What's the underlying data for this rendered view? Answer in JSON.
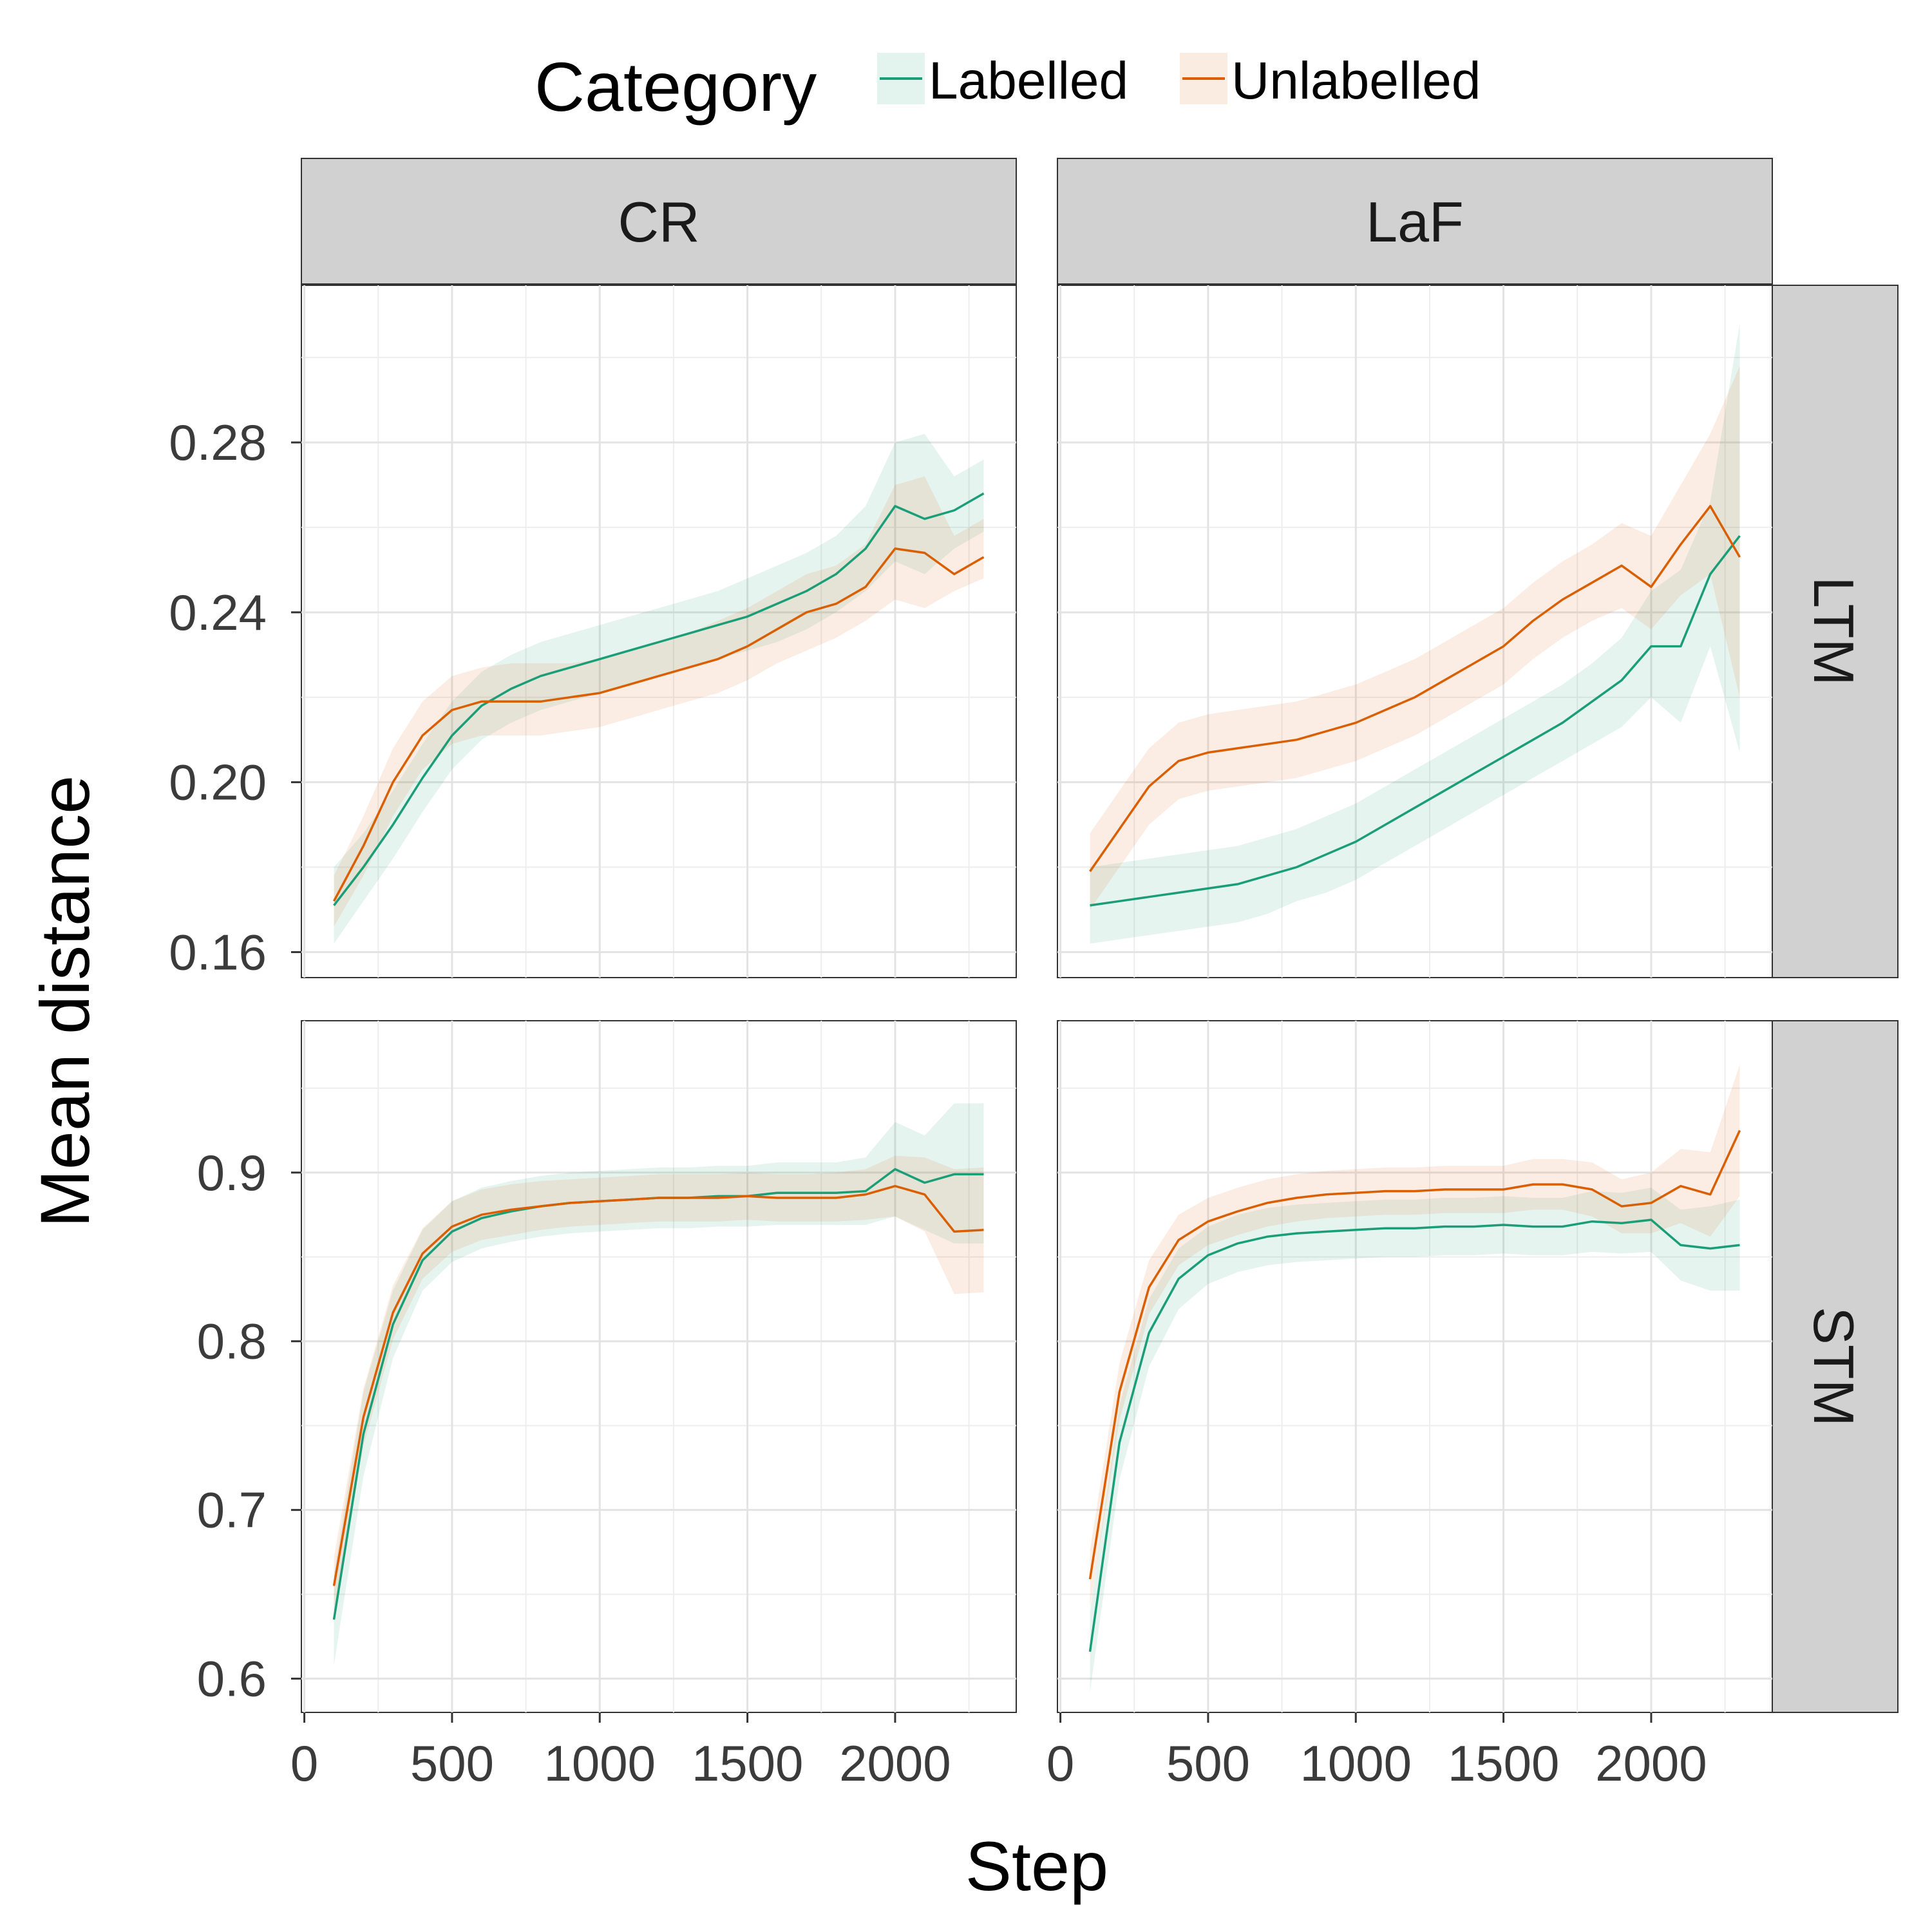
{
  "legend": {
    "title": "Category",
    "items": [
      {
        "label": "Labelled",
        "color": "#1b9e77"
      },
      {
        "label": "Unlabelled",
        "color": "#d95f02"
      }
    ]
  },
  "axes": {
    "xlabel": "Step",
    "ylabel": "Mean distance"
  },
  "chart_data": {
    "type": "line",
    "facets": {
      "columns": [
        "CR",
        "LaF"
      ],
      "rows": [
        "LTM",
        "STM"
      ]
    },
    "x": {
      "range": [
        -10,
        2410
      ],
      "ticks": [
        0,
        500,
        1000,
        1500,
        2000
      ],
      "tick_labels": [
        "0",
        "500",
        "1000",
        "1500",
        "2000"
      ]
    },
    "rows": {
      "LTM": {
        "ylim": [
          0.154,
          0.317
        ],
        "ticks": [
          0.16,
          0.2,
          0.24,
          0.28
        ],
        "tick_labels": [
          "0.16",
          "0.20",
          "0.24",
          "0.28"
        ]
      },
      "STM": {
        "ylim": [
          0.58,
          0.99
        ],
        "ticks": [
          0.6,
          0.7,
          0.8,
          0.9
        ],
        "tick_labels": [
          "0.6",
          "0.7",
          "0.8",
          "0.9"
        ]
      }
    },
    "steps": [
      100,
      200,
      300,
      400,
      500,
      600,
      700,
      800,
      900,
      1000,
      1100,
      1200,
      1300,
      1400,
      1500,
      1600,
      1700,
      1800,
      1900,
      2000,
      2100,
      2200,
      2300
    ],
    "panels": [
      {
        "col": "CR",
        "row": "LTM",
        "series": [
          {
            "name": "Labelled",
            "mean": [
              0.171,
              0.18,
              0.19,
              0.201,
              0.211,
              0.218,
              0.222,
              0.225,
              0.227,
              0.229,
              0.231,
              0.233,
              0.235,
              0.237,
              0.239,
              0.242,
              0.245,
              0.249,
              0.255,
              0.265,
              0.262,
              0.264,
              0.268
            ],
            "lower": [
              0.162,
              0.172,
              0.182,
              0.193,
              0.203,
              0.21,
              0.214,
              0.217,
              0.219,
              0.221,
              0.223,
              0.225,
              0.227,
              0.229,
              0.231,
              0.233,
              0.236,
              0.24,
              0.245,
              0.252,
              0.249,
              0.255,
              0.259
            ],
            "upper": [
              0.18,
              0.188,
              0.198,
              0.209,
              0.219,
              0.226,
              0.23,
              0.233,
              0.235,
              0.237,
              0.239,
              0.241,
              0.243,
              0.245,
              0.248,
              0.251,
              0.254,
              0.258,
              0.265,
              0.28,
              0.282,
              0.272,
              0.276
            ]
          },
          {
            "name": "Unlabelled",
            "mean": [
              0.172,
              0.185,
              0.2,
              0.211,
              0.217,
              0.219,
              0.219,
              0.219,
              0.22,
              0.221,
              0.223,
              0.225,
              0.227,
              0.229,
              0.232,
              0.236,
              0.24,
              0.242,
              0.246,
              0.255,
              0.254,
              0.249,
              0.253
            ],
            "lower": [
              0.166,
              0.178,
              0.192,
              0.203,
              0.209,
              0.211,
              0.211,
              0.211,
              0.212,
              0.213,
              0.215,
              0.217,
              0.219,
              0.221,
              0.224,
              0.228,
              0.231,
              0.234,
              0.238,
              0.243,
              0.241,
              0.245,
              0.248
            ],
            "upper": [
              0.178,
              0.192,
              0.208,
              0.219,
              0.225,
              0.227,
              0.228,
              0.228,
              0.228,
              0.229,
              0.231,
              0.233,
              0.235,
              0.238,
              0.241,
              0.245,
              0.249,
              0.251,
              0.256,
              0.27,
              0.272,
              0.258,
              0.262
            ]
          }
        ]
      },
      {
        "col": "LaF",
        "row": "LTM",
        "series": [
          {
            "name": "Labelled",
            "mean": [
              0.171,
              0.172,
              0.173,
              0.174,
              0.175,
              0.176,
              0.178,
              0.18,
              0.183,
              0.186,
              0.19,
              0.194,
              0.198,
              0.202,
              0.206,
              0.21,
              0.214,
              0.219,
              0.224,
              0.232,
              0.232,
              0.249,
              0.258
            ],
            "lower": [
              0.162,
              0.163,
              0.164,
              0.165,
              0.166,
              0.167,
              0.169,
              0.172,
              0.174,
              0.177,
              0.181,
              0.185,
              0.189,
              0.193,
              0.197,
              0.201,
              0.205,
              0.209,
              0.213,
              0.22,
              0.214,
              0.232,
              0.207
            ],
            "upper": [
              0.18,
              0.181,
              0.182,
              0.183,
              0.184,
              0.185,
              0.187,
              0.189,
              0.192,
              0.195,
              0.199,
              0.203,
              0.207,
              0.211,
              0.215,
              0.219,
              0.223,
              0.228,
              0.234,
              0.245,
              0.25,
              0.266,
              0.308
            ]
          },
          {
            "name": "Unlabelled",
            "mean": [
              0.179,
              0.189,
              0.199,
              0.205,
              0.207,
              0.208,
              0.209,
              0.21,
              0.212,
              0.214,
              0.217,
              0.22,
              0.224,
              0.228,
              0.232,
              0.238,
              0.243,
              0.247,
              0.251,
              0.246,
              0.256,
              0.265,
              0.253
            ],
            "lower": [
              0.17,
              0.18,
              0.19,
              0.196,
              0.198,
              0.199,
              0.2,
              0.201,
              0.203,
              0.205,
              0.208,
              0.211,
              0.215,
              0.219,
              0.223,
              0.229,
              0.234,
              0.238,
              0.241,
              0.236,
              0.244,
              0.249,
              0.22
            ],
            "upper": [
              0.188,
              0.198,
              0.208,
              0.214,
              0.216,
              0.217,
              0.218,
              0.219,
              0.221,
              0.223,
              0.226,
              0.229,
              0.233,
              0.237,
              0.241,
              0.247,
              0.252,
              0.256,
              0.261,
              0.258,
              0.27,
              0.282,
              0.298
            ]
          }
        ]
      },
      {
        "col": "CR",
        "row": "STM",
        "series": [
          {
            "name": "Labelled",
            "mean": [
              0.635,
              0.745,
              0.81,
              0.848,
              0.865,
              0.873,
              0.877,
              0.88,
              0.882,
              0.883,
              0.884,
              0.885,
              0.885,
              0.886,
              0.886,
              0.888,
              0.888,
              0.888,
              0.889,
              0.902,
              0.894,
              0.899,
              0.899
            ],
            "lower": [
              0.608,
              0.72,
              0.79,
              0.83,
              0.847,
              0.855,
              0.859,
              0.862,
              0.864,
              0.865,
              0.866,
              0.867,
              0.867,
              0.868,
              0.868,
              0.869,
              0.869,
              0.869,
              0.869,
              0.874,
              0.866,
              0.858,
              0.858
            ],
            "upper": [
              0.662,
              0.77,
              0.83,
              0.866,
              0.883,
              0.891,
              0.895,
              0.898,
              0.9,
              0.901,
              0.902,
              0.903,
              0.903,
              0.904,
              0.904,
              0.906,
              0.906,
              0.906,
              0.909,
              0.93,
              0.922,
              0.941,
              0.941
            ]
          },
          {
            "name": "Unlabelled",
            "mean": [
              0.655,
              0.755,
              0.817,
              0.852,
              0.868,
              0.875,
              0.878,
              0.88,
              0.882,
              0.883,
              0.884,
              0.885,
              0.885,
              0.885,
              0.886,
              0.885,
              0.885,
              0.885,
              0.887,
              0.892,
              0.887,
              0.865,
              0.866
            ],
            "lower": [
              0.638,
              0.738,
              0.801,
              0.837,
              0.853,
              0.86,
              0.863,
              0.866,
              0.868,
              0.869,
              0.87,
              0.871,
              0.871,
              0.871,
              0.872,
              0.871,
              0.871,
              0.871,
              0.872,
              0.874,
              0.865,
              0.828,
              0.829
            ],
            "upper": [
              0.672,
              0.772,
              0.833,
              0.867,
              0.883,
              0.89,
              0.893,
              0.895,
              0.896,
              0.897,
              0.898,
              0.899,
              0.899,
              0.899,
              0.9,
              0.899,
              0.899,
              0.9,
              0.902,
              0.91,
              0.909,
              0.902,
              0.903
            ]
          }
        ]
      },
      {
        "col": "LaF",
        "row": "STM",
        "series": [
          {
            "name": "Labelled",
            "mean": [
              0.616,
              0.74,
              0.805,
              0.837,
              0.851,
              0.858,
              0.862,
              0.864,
              0.865,
              0.866,
              0.867,
              0.867,
              0.868,
              0.868,
              0.869,
              0.868,
              0.868,
              0.871,
              0.87,
              0.872,
              0.857,
              0.855,
              0.857
            ],
            "lower": [
              0.592,
              0.718,
              0.785,
              0.819,
              0.834,
              0.841,
              0.845,
              0.847,
              0.848,
              0.849,
              0.85,
              0.85,
              0.851,
              0.851,
              0.852,
              0.851,
              0.851,
              0.853,
              0.852,
              0.853,
              0.836,
              0.83,
              0.83
            ],
            "upper": [
              0.64,
              0.762,
              0.825,
              0.855,
              0.868,
              0.875,
              0.879,
              0.881,
              0.882,
              0.883,
              0.884,
              0.884,
              0.885,
              0.885,
              0.886,
              0.885,
              0.885,
              0.889,
              0.888,
              0.891,
              0.878,
              0.88,
              0.884
            ]
          },
          {
            "name": "Unlabelled",
            "mean": [
              0.659,
              0.77,
              0.832,
              0.86,
              0.871,
              0.877,
              0.882,
              0.885,
              0.887,
              0.888,
              0.889,
              0.889,
              0.89,
              0.89,
              0.89,
              0.893,
              0.893,
              0.89,
              0.88,
              0.882,
              0.892,
              0.887,
              0.925
            ],
            "lower": [
              0.642,
              0.753,
              0.816,
              0.845,
              0.857,
              0.863,
              0.868,
              0.871,
              0.873,
              0.874,
              0.875,
              0.875,
              0.876,
              0.876,
              0.876,
              0.878,
              0.878,
              0.874,
              0.864,
              0.864,
              0.87,
              0.862,
              0.886
            ],
            "upper": [
              0.676,
              0.787,
              0.848,
              0.875,
              0.885,
              0.891,
              0.896,
              0.899,
              0.901,
              0.902,
              0.903,
              0.903,
              0.904,
              0.904,
              0.904,
              0.908,
              0.908,
              0.906,
              0.896,
              0.9,
              0.914,
              0.912,
              0.964
            ]
          }
        ]
      }
    ]
  }
}
